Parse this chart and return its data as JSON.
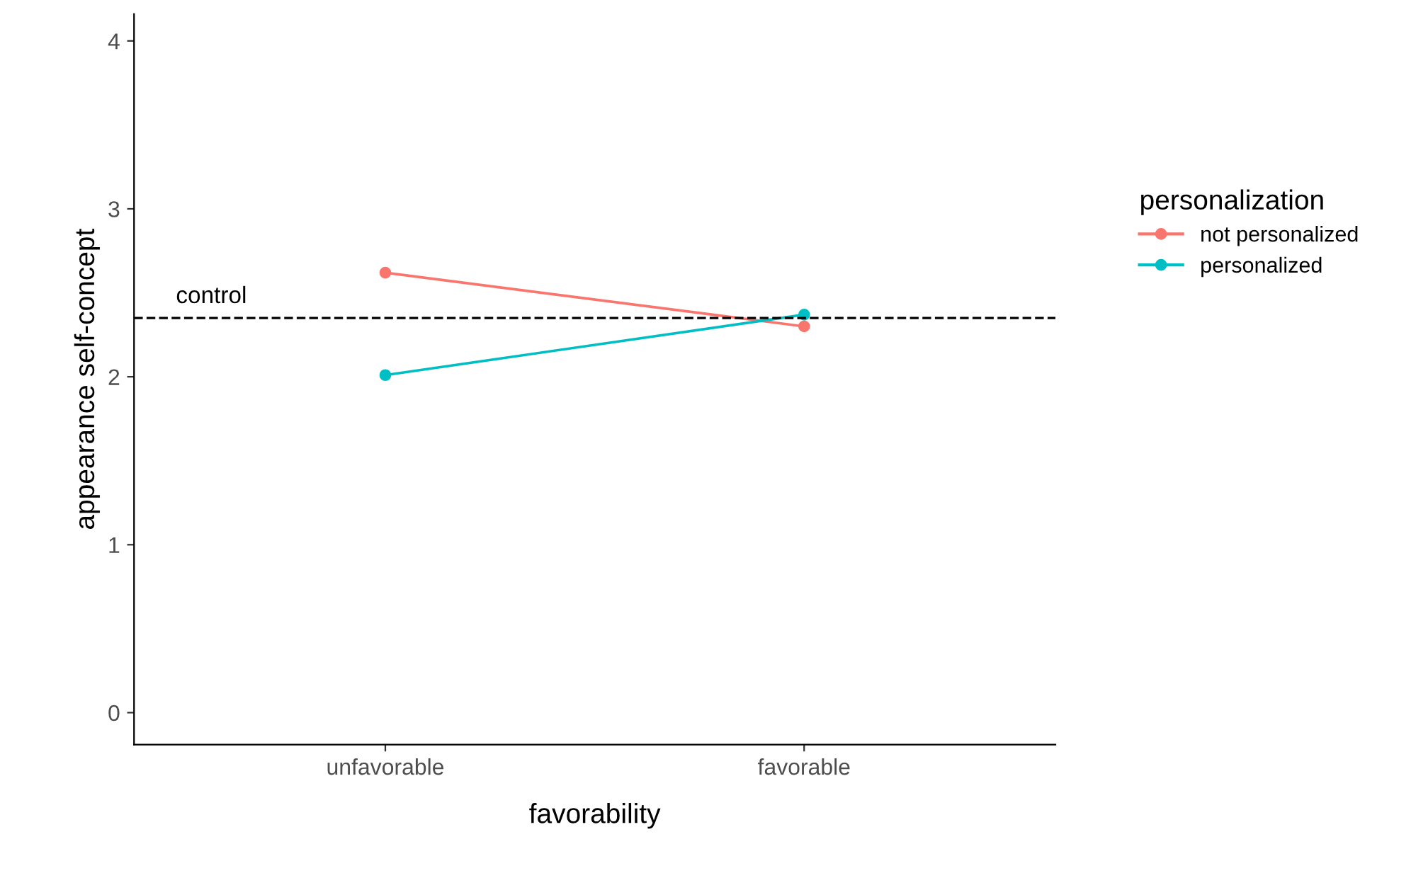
{
  "chart_data": {
    "type": "line",
    "xlabel": "favorability",
    "ylabel": "appearance self-concept",
    "legend_title": "personalization",
    "categories": [
      "unfavorable",
      "favorable"
    ],
    "series": [
      {
        "name": "not personalized",
        "color": "#f8766d",
        "values": [
          2.62,
          2.3
        ]
      },
      {
        "name": "personalized",
        "color": "#00bfc4",
        "values": [
          2.01,
          2.37
        ]
      }
    ],
    "ylim": [
      -0.19,
      4.16
    ],
    "yticks": [
      0,
      1,
      2,
      3,
      4
    ],
    "ref_lines": [
      {
        "axis": "y",
        "value": 2.35,
        "label": "control",
        "color": "#000000",
        "line_style": "dashed"
      }
    ],
    "marker": "circle",
    "line_style": "solid",
    "legend": "right",
    "grid": false
  }
}
